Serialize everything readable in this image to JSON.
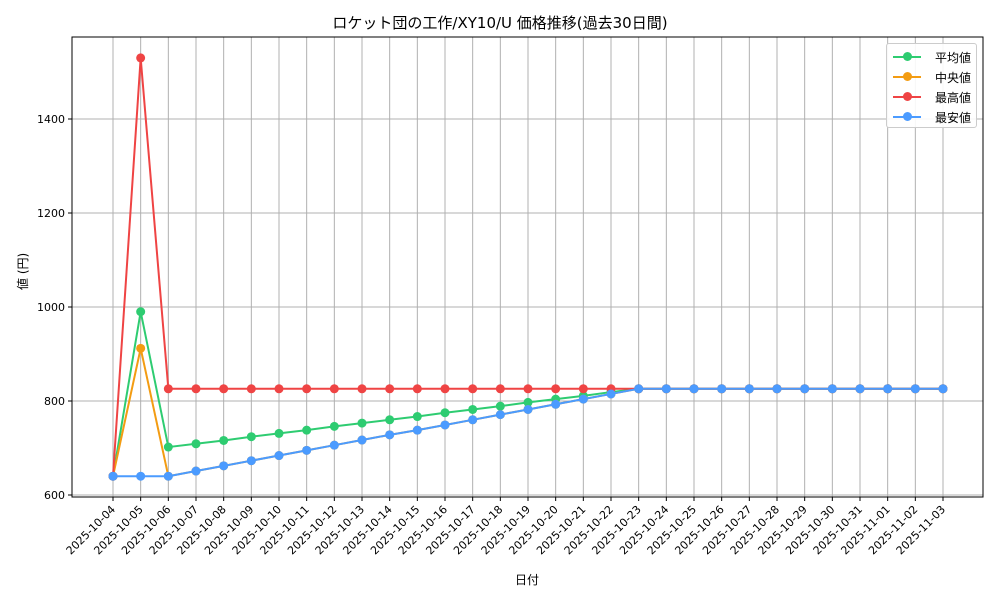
{
  "chart_data": {
    "type": "line",
    "title": "ロケット団の工作/XY10/U 価格推移(過去30日間)",
    "xlabel": "日付",
    "ylabel": "値 (円)",
    "ylim": [
      595,
      1575
    ],
    "yticks": [
      600,
      800,
      1000,
      1200,
      1400
    ],
    "grid": true,
    "legend_position": "upper right",
    "categories": [
      "2025-10-04",
      "2025-10-05",
      "2025-10-06",
      "2025-10-07",
      "2025-10-08",
      "2025-10-09",
      "2025-10-10",
      "2025-10-11",
      "2025-10-12",
      "2025-10-13",
      "2025-10-14",
      "2025-10-15",
      "2025-10-16",
      "2025-10-17",
      "2025-10-18",
      "2025-10-19",
      "2025-10-20",
      "2025-10-21",
      "2025-10-22",
      "2025-10-23",
      "2025-10-24",
      "2025-10-25",
      "2025-10-26",
      "2025-10-27",
      "2025-10-28",
      "2025-10-29",
      "2025-10-30",
      "2025-10-31",
      "2025-11-01",
      "2025-11-02",
      "2025-11-03"
    ],
    "series": [
      {
        "name": "平均値",
        "color": "#2ecc71",
        "values": [
          640,
          990,
          702,
          709,
          716,
          724,
          731,
          738,
          746,
          753,
          760,
          767,
          775,
          782,
          789,
          797,
          804,
          811,
          819,
          826,
          826,
          826,
          826,
          826,
          826,
          826,
          826,
          826,
          826,
          826,
          826
        ]
      },
      {
        "name": "中央値",
        "color": "#f39c12",
        "values": [
          640,
          912,
          640,
          651,
          662,
          673,
          684,
          695,
          706,
          717,
          728,
          738,
          749,
          760,
          771,
          782,
          793,
          804,
          815,
          826,
          826,
          826,
          826,
          826,
          826,
          826,
          826,
          826,
          826,
          826,
          826
        ]
      },
      {
        "name": "最高値",
        "color": "#ef4444",
        "values": [
          640,
          1530,
          826,
          826,
          826,
          826,
          826,
          826,
          826,
          826,
          826,
          826,
          826,
          826,
          826,
          826,
          826,
          826,
          826,
          826,
          826,
          826,
          826,
          826,
          826,
          826,
          826,
          826,
          826,
          826,
          826
        ]
      },
      {
        "name": "最安値",
        "color": "#4b9bff",
        "values": [
          640,
          640,
          640,
          651,
          662,
          673,
          684,
          695,
          706,
          717,
          728,
          738,
          749,
          760,
          771,
          782,
          793,
          804,
          815,
          826,
          826,
          826,
          826,
          826,
          826,
          826,
          826,
          826,
          826,
          826,
          826
        ]
      }
    ]
  }
}
